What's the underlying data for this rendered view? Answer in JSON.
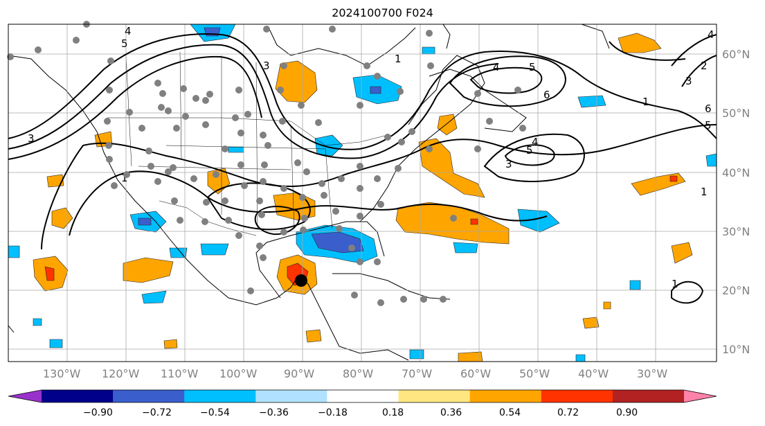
{
  "title": "2024100700 F024",
  "lon_labels": [
    "130°W",
    "120°W",
    "110°W",
    "100°W",
    "90°W",
    "80°W",
    "70°W",
    "60°W",
    "50°W",
    "40°W",
    "30°W"
  ],
  "lat_labels": [
    "60°N",
    "50°N",
    "40°N",
    "30°N",
    "20°N",
    "10°N"
  ],
  "colorbar": {
    "ticks": [
      "−0.90",
      "−0.72",
      "−0.54",
      "−0.36",
      "−0.18",
      "0.18",
      "0.36",
      "0.54",
      "0.72",
      "0.90"
    ],
    "colors": [
      "#9932cc",
      "#00008b",
      "#3a5fcd",
      "#00bfff",
      "#b0e2ff",
      "#ffffff",
      "#ffe680",
      "#ffa500",
      "#ff3300",
      "#b22222",
      "#ff82ab"
    ]
  },
  "contour_labels": [
    "4",
    "5",
    "6",
    "5",
    "4",
    "3",
    "1",
    "2",
    "1",
    "4",
    "5",
    "3",
    "1",
    "3",
    "1",
    "3",
    "1",
    "6",
    "5",
    "4",
    "5",
    "3",
    "2",
    "1"
  ]
}
